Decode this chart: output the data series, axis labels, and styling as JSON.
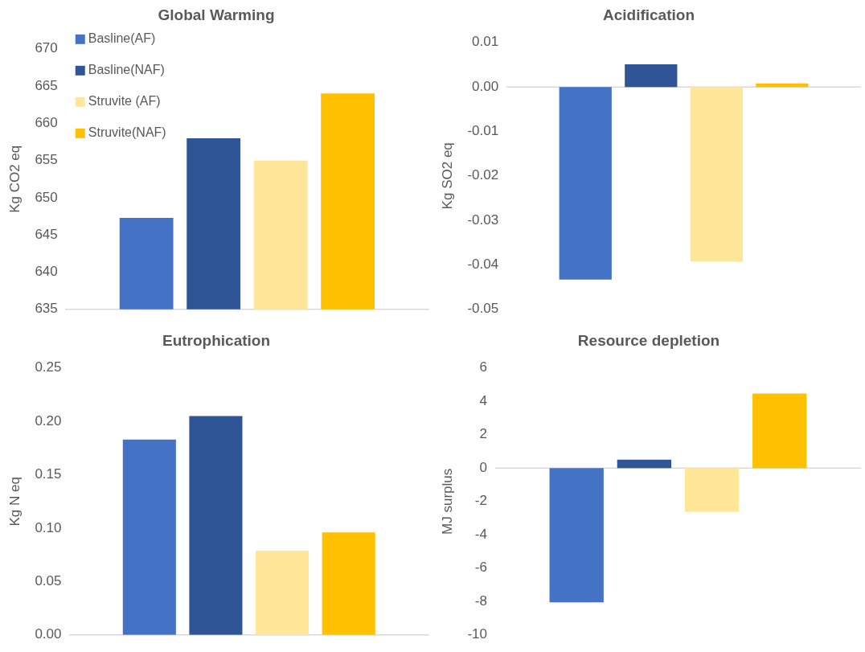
{
  "chart_data": [
    {
      "type": "bar",
      "title": "Global Warming",
      "ylabel": "Kg CO2 eq",
      "categories": [
        null
      ],
      "series": [
        {
          "name": "Basline(AF)",
          "color": "#4472c4",
          "values": [
            647.3
          ]
        },
        {
          "name": "Basline(NAF)",
          "color": "#2f5597",
          "values": [
            658
          ]
        },
        {
          "name": "Struvite (AF)",
          "color": "#ffe699",
          "values": [
            655
          ]
        },
        {
          "name": "Struvite(NAF)",
          "color": "#ffc000",
          "values": [
            664
          ]
        }
      ],
      "ylim": [
        635,
        670
      ],
      "yticks": [
        635,
        640,
        645,
        650,
        655,
        660,
        665,
        670
      ],
      "grid": false,
      "legend": "top left"
    },
    {
      "type": "bar",
      "title": "Acidification",
      "ylabel": "Kg SO2 eq",
      "categories": [
        null
      ],
      "series": [
        {
          "color": "#4472c4",
          "values": [
            -0.0433
          ]
        },
        {
          "color": "#2f5597",
          "values": [
            0.0051
          ]
        },
        {
          "color": "#ffe699",
          "values": [
            -0.0393
          ]
        },
        {
          "color": "#ffc000",
          "values": [
            0.0008
          ]
        }
      ],
      "ylim": [
        -0.05,
        0.01
      ],
      "yticks": [
        {
          "value": -0.05,
          "label": "-0.05"
        },
        {
          "value": -0.04,
          "label": "-0.04"
        },
        {
          "value": -0.03,
          "label": "-0.03"
        },
        {
          "value": -0.02,
          "label": "-0.02"
        },
        {
          "value": -0.01,
          "label": "-0.01"
        },
        {
          "value": 0,
          "label": "0.00"
        },
        {
          "value": 0.01,
          "label": "0.01"
        }
      ],
      "grid": false,
      "legend": false,
      "ref_lines": [
        {
          "axis": "y",
          "value": 0,
          "color": "#d9d9d9"
        }
      ]
    },
    {
      "type": "bar",
      "title": "Eutrophication",
      "ylabel": "Kg N eq",
      "categories": [
        null
      ],
      "series": [
        {
          "color": "#4472c4",
          "values": [
            0.183
          ]
        },
        {
          "color": "#2f5597",
          "values": [
            0.205
          ]
        },
        {
          "color": "#ffe699",
          "values": [
            0.079
          ]
        },
        {
          "color": "#ffc000",
          "values": [
            0.096
          ]
        }
      ],
      "ylim": [
        0,
        0.25
      ],
      "yticks": [
        {
          "value": 0,
          "label": "0.00"
        },
        0.05,
        {
          "value": 0.1,
          "label": "0.10"
        },
        0.15,
        {
          "value": 0.2,
          "label": "0.20"
        },
        0.25
      ],
      "grid": false,
      "legend": false
    },
    {
      "type": "bar",
      "title": "Resource depletion",
      "ylabel": "MJ surplus",
      "categories": [
        null
      ],
      "series": [
        {
          "color": "#4472c4",
          "values": [
            -8.04
          ]
        },
        {
          "color": "#2f5597",
          "values": [
            0.51
          ]
        },
        {
          "color": "#ffe699",
          "values": [
            -2.63
          ]
        },
        {
          "color": "#ffc000",
          "values": [
            4.47
          ]
        }
      ],
      "ylim": [
        -10,
        6
      ],
      "yticks": [
        -10,
        -8,
        -6,
        -4,
        -2,
        0,
        2,
        4,
        6
      ],
      "grid": false,
      "legend": false,
      "ref_lines": [
        {
          "axis": "y",
          "value": 0,
          "color": "#d9d9d9"
        }
      ]
    }
  ]
}
